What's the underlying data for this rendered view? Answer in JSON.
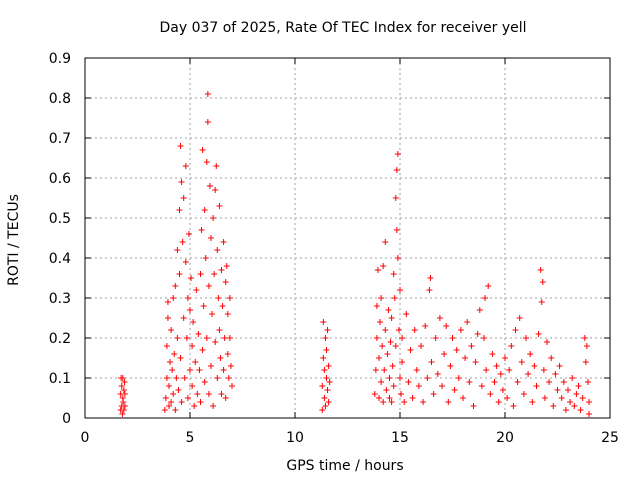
{
  "chart_data": {
    "type": "scatter",
    "title": "Day 037 of 2025, Rate Of TEC Index for receiver yell",
    "xlabel": "GPS time / hours",
    "ylabel": "ROTI / TECUs",
    "xlim": [
      0,
      25
    ],
    "ylim": [
      0,
      0.9
    ],
    "xticks": [
      "0",
      "5",
      "10",
      "15",
      "20",
      "25"
    ],
    "yticks": [
      "0",
      "0.1",
      "0.2",
      "0.3",
      "0.4",
      "0.5",
      "0.6",
      "0.7",
      "0.8",
      "0.9"
    ],
    "grid": true,
    "marker": "+",
    "color": "#ff0000",
    "series": [
      {
        "name": "ROTI",
        "points": [
          [
            1.7,
            0.02
          ],
          [
            1.7,
            0.06
          ],
          [
            1.72,
            0.1
          ],
          [
            1.75,
            0.03
          ],
          [
            1.75,
            0.08
          ],
          [
            1.78,
            0.01
          ],
          [
            1.8,
            0.05
          ],
          [
            1.8,
            0.1
          ],
          [
            1.82,
            0.04
          ],
          [
            1.85,
            0.07
          ],
          [
            1.85,
            0.02
          ],
          [
            1.88,
            0.09
          ],
          [
            1.9,
            0.03
          ],
          [
            1.9,
            0.06
          ],
          [
            3.8,
            0.02
          ],
          [
            3.85,
            0.05
          ],
          [
            3.9,
            0.1
          ],
          [
            3.9,
            0.18
          ],
          [
            3.95,
            0.25
          ],
          [
            3.95,
            0.29
          ],
          [
            4.0,
            0.03
          ],
          [
            4.0,
            0.08
          ],
          [
            4.05,
            0.14
          ],
          [
            4.1,
            0.22
          ],
          [
            4.1,
            0.04
          ],
          [
            4.15,
            0.12
          ],
          [
            4.2,
            0.3
          ],
          [
            4.2,
            0.06
          ],
          [
            4.25,
            0.16
          ],
          [
            4.3,
            0.33
          ],
          [
            4.3,
            0.02
          ],
          [
            4.35,
            0.1
          ],
          [
            4.4,
            0.2
          ],
          [
            4.4,
            0.42
          ],
          [
            4.45,
            0.07
          ],
          [
            4.5,
            0.36
          ],
          [
            4.5,
            0.52
          ],
          [
            4.55,
            0.15
          ],
          [
            4.55,
            0.68
          ],
          [
            4.6,
            0.04
          ],
          [
            4.6,
            0.59
          ],
          [
            4.65,
            0.44
          ],
          [
            4.7,
            0.25
          ],
          [
            4.7,
            0.55
          ],
          [
            4.75,
            0.1
          ],
          [
            4.8,
            0.39
          ],
          [
            4.8,
            0.63
          ],
          [
            4.85,
            0.2
          ],
          [
            4.9,
            0.3
          ],
          [
            4.9,
            0.05
          ],
          [
            4.95,
            0.46
          ],
          [
            5.0,
            0.12
          ],
          [
            5.0,
            0.27
          ],
          [
            5.05,
            0.35
          ],
          [
            5.1,
            0.08
          ],
          [
            5.1,
            0.18
          ],
          [
            5.15,
            0.24
          ],
          [
            5.2,
            0.03
          ],
          [
            5.25,
            0.14
          ],
          [
            5.3,
            0.32
          ],
          [
            5.35,
            0.06
          ],
          [
            5.4,
            0.21
          ],
          [
            5.45,
            0.12
          ],
          [
            5.5,
            0.36
          ],
          [
            5.5,
            0.04
          ],
          [
            5.55,
            0.47
          ],
          [
            5.6,
            0.17
          ],
          [
            5.6,
            0.67
          ],
          [
            5.65,
            0.28
          ],
          [
            5.7,
            0.09
          ],
          [
            5.7,
            0.52
          ],
          [
            5.75,
            0.4
          ],
          [
            5.8,
            0.2
          ],
          [
            5.8,
            0.64
          ],
          [
            5.85,
            0.74
          ],
          [
            5.85,
            0.81
          ],
          [
            5.9,
            0.33
          ],
          [
            5.9,
            0.06
          ],
          [
            5.95,
            0.58
          ],
          [
            6.0,
            0.13
          ],
          [
            6.0,
            0.45
          ],
          [
            6.05,
            0.26
          ],
          [
            6.1,
            0.5
          ],
          [
            6.1,
            0.03
          ],
          [
            6.15,
            0.36
          ],
          [
            6.2,
            0.57
          ],
          [
            6.2,
            0.19
          ],
          [
            6.25,
            0.63
          ],
          [
            6.3,
            0.42
          ],
          [
            6.3,
            0.1
          ],
          [
            6.35,
            0.3
          ],
          [
            6.4,
            0.22
          ],
          [
            6.4,
            0.53
          ],
          [
            6.45,
            0.15
          ],
          [
            6.5,
            0.37
          ],
          [
            6.5,
            0.06
          ],
          [
            6.55,
            0.28
          ],
          [
            6.6,
            0.44
          ],
          [
            6.6,
            0.12
          ],
          [
            6.65,
            0.2
          ],
          [
            6.7,
            0.34
          ],
          [
            6.7,
            0.05
          ],
          [
            6.75,
            0.38
          ],
          [
            6.8,
            0.16
          ],
          [
            6.8,
            0.26
          ],
          [
            6.85,
            0.1
          ],
          [
            6.9,
            0.3
          ],
          [
            6.9,
            0.2
          ],
          [
            6.95,
            0.13
          ],
          [
            7.0,
            0.08
          ],
          [
            11.3,
            0.02
          ],
          [
            11.3,
            0.08
          ],
          [
            11.35,
            0.15
          ],
          [
            11.35,
            0.24
          ],
          [
            11.4,
            0.05
          ],
          [
            11.4,
            0.12
          ],
          [
            11.45,
            0.2
          ],
          [
            11.45,
            0.03
          ],
          [
            11.5,
            0.1
          ],
          [
            11.5,
            0.17
          ],
          [
            11.55,
            0.07
          ],
          [
            11.55,
            0.22
          ],
          [
            11.6,
            0.04
          ],
          [
            11.6,
            0.13
          ],
          [
            11.65,
            0.09
          ],
          [
            13.8,
            0.06
          ],
          [
            13.85,
            0.12
          ],
          [
            13.9,
            0.2
          ],
          [
            13.9,
            0.28
          ],
          [
            13.95,
            0.37
          ],
          [
            14.0,
            0.05
          ],
          [
            14.0,
            0.15
          ],
          [
            14.05,
            0.24
          ],
          [
            14.1,
            0.09
          ],
          [
            14.1,
            0.3
          ],
          [
            14.15,
            0.18
          ],
          [
            14.2,
            0.04
          ],
          [
            14.2,
            0.38
          ],
          [
            14.25,
            0.12
          ],
          [
            14.3,
            0.22
          ],
          [
            14.3,
            0.44
          ],
          [
            14.35,
            0.07
          ],
          [
            14.4,
            0.16
          ],
          [
            14.45,
            0.27
          ],
          [
            14.5,
            0.05
          ],
          [
            14.5,
            0.1
          ],
          [
            14.55,
            0.19
          ],
          [
            14.6,
            0.04
          ],
          [
            14.6,
            0.25
          ],
          [
            14.65,
            0.13
          ],
          [
            14.7,
            0.36
          ],
          [
            14.7,
            0.08
          ],
          [
            14.75,
            0.3
          ],
          [
            14.8,
            0.55
          ],
          [
            14.8,
            0.18
          ],
          [
            14.85,
            0.62
          ],
          [
            14.85,
            0.47
          ],
          [
            14.9,
            0.66
          ],
          [
            14.9,
            0.4
          ],
          [
            14.95,
            0.22
          ],
          [
            15.0,
            0.1
          ],
          [
            15.0,
            0.32
          ],
          [
            15.05,
            0.06
          ],
          [
            15.1,
            0.2
          ],
          [
            15.1,
            0.14
          ],
          [
            15.2,
            0.04
          ],
          [
            15.3,
            0.26
          ],
          [
            15.4,
            0.09
          ],
          [
            15.5,
            0.17
          ],
          [
            15.6,
            0.05
          ],
          [
            15.7,
            0.22
          ],
          [
            15.8,
            0.12
          ],
          [
            15.9,
            0.08
          ],
          [
            16.0,
            0.18
          ],
          [
            16.1,
            0.04
          ],
          [
            16.2,
            0.23
          ],
          [
            16.3,
            0.1
          ],
          [
            16.4,
            0.32
          ],
          [
            16.45,
            0.35
          ],
          [
            16.5,
            0.14
          ],
          [
            16.6,
            0.06
          ],
          [
            16.7,
            0.2
          ],
          [
            16.8,
            0.11
          ],
          [
            16.9,
            0.25
          ],
          [
            17.0,
            0.08
          ],
          [
            17.1,
            0.16
          ],
          [
            17.2,
            0.23
          ],
          [
            17.3,
            0.04
          ],
          [
            17.4,
            0.13
          ],
          [
            17.5,
            0.2
          ],
          [
            17.6,
            0.07
          ],
          [
            17.7,
            0.17
          ],
          [
            17.8,
            0.1
          ],
          [
            17.9,
            0.22
          ],
          [
            18.0,
            0.05
          ],
          [
            18.1,
            0.15
          ],
          [
            18.2,
            0.24
          ],
          [
            18.3,
            0.09
          ],
          [
            18.4,
            0.18
          ],
          [
            18.5,
            0.03
          ],
          [
            18.6,
            0.14
          ],
          [
            18.7,
            0.21
          ],
          [
            18.8,
            0.27
          ],
          [
            18.9,
            0.08
          ],
          [
            19.0,
            0.2
          ],
          [
            19.05,
            0.3
          ],
          [
            19.1,
            0.12
          ],
          [
            19.2,
            0.33
          ],
          [
            19.3,
            0.06
          ],
          [
            19.4,
            0.16
          ],
          [
            19.5,
            0.09
          ],
          [
            19.6,
            0.13
          ],
          [
            19.7,
            0.04
          ],
          [
            19.8,
            0.11
          ],
          [
            19.9,
            0.07
          ],
          [
            20.0,
            0.15
          ],
          [
            20.1,
            0.05
          ],
          [
            20.2,
            0.12
          ],
          [
            20.3,
            0.18
          ],
          [
            20.4,
            0.03
          ],
          [
            20.5,
            0.22
          ],
          [
            20.6,
            0.09
          ],
          [
            20.7,
            0.25
          ],
          [
            20.8,
            0.14
          ],
          [
            20.9,
            0.06
          ],
          [
            21.0,
            0.2
          ],
          [
            21.1,
            0.11
          ],
          [
            21.2,
            0.16
          ],
          [
            21.3,
            0.04
          ],
          [
            21.4,
            0.13
          ],
          [
            21.5,
            0.08
          ],
          [
            21.6,
            0.21
          ],
          [
            21.7,
            0.37
          ],
          [
            21.75,
            0.29
          ],
          [
            21.8,
            0.34
          ],
          [
            21.85,
            0.12
          ],
          [
            21.9,
            0.05
          ],
          [
            22.0,
            0.19
          ],
          [
            22.1,
            0.09
          ],
          [
            22.2,
            0.15
          ],
          [
            22.3,
            0.03
          ],
          [
            22.4,
            0.11
          ],
          [
            22.5,
            0.07
          ],
          [
            22.6,
            0.13
          ],
          [
            22.7,
            0.05
          ],
          [
            22.8,
            0.09
          ],
          [
            22.9,
            0.02
          ],
          [
            23.0,
            0.07
          ],
          [
            23.1,
            0.04
          ],
          [
            23.2,
            0.1
          ],
          [
            23.3,
            0.03
          ],
          [
            23.4,
            0.06
          ],
          [
            23.5,
            0.08
          ],
          [
            23.6,
            0.02
          ],
          [
            23.7,
            0.05
          ],
          [
            23.8,
            0.2
          ],
          [
            23.85,
            0.14
          ],
          [
            23.9,
            0.18
          ],
          [
            23.95,
            0.09
          ],
          [
            24.0,
            0.04
          ],
          [
            24.0,
            0.01
          ]
        ]
      }
    ]
  }
}
